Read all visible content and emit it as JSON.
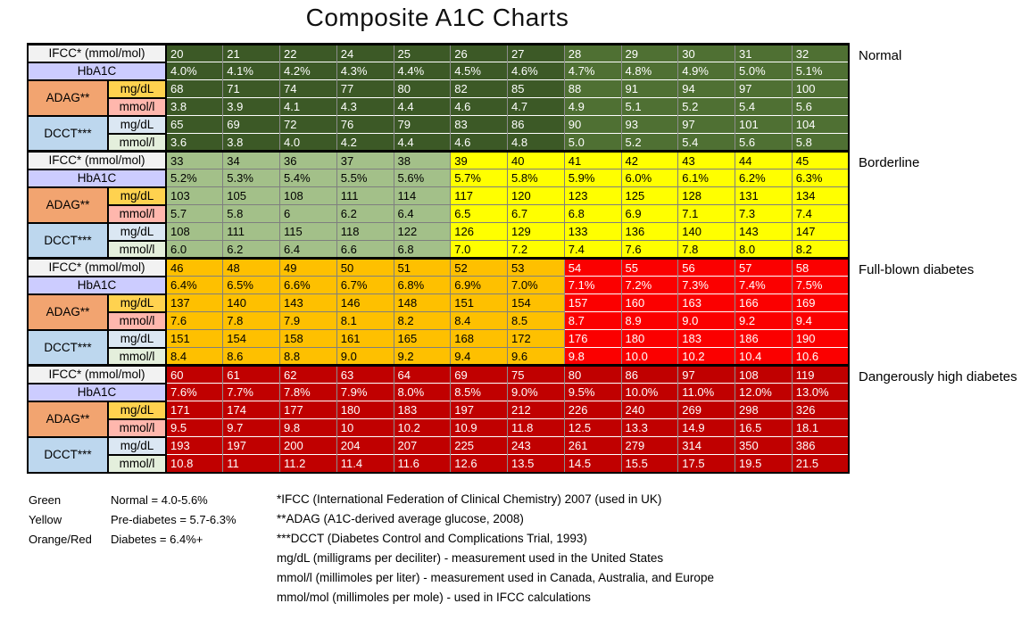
{
  "title": "Composite A1C Charts",
  "colors": {
    "darkgreen": "#3c5926",
    "medgreen": "#4f7033",
    "lightgreen": "#a3c089",
    "yellow": "#ffff00",
    "orange": "#fec000",
    "red": "#fb0000",
    "darkred": "#c00000",
    "header_ifcc": "#f2f2f2",
    "header_hba1c": "#ccccff",
    "header_adag": "#f2a470",
    "header_adag_mgdl": "#ffd24f",
    "header_adag_mmoll": "#ffb7ad",
    "header_dcct": "#bdd7ee",
    "header_dcct_mgdl": "#dbe7f3",
    "header_dcct_mmoll": "#e4efdc"
  },
  "chart_data": {
    "type": "table",
    "title": "Composite A1C Charts",
    "row_headers": {
      "ifcc": "IFCC* (mmol/mol)",
      "hba1c": "HbA1C",
      "adag": "ADAG**",
      "dcct": "DCCT***",
      "mgdl": "mg/dL",
      "mmoll": "mmol/l"
    },
    "sections": [
      {
        "label": "Normal",
        "left_color": "darkgreen",
        "right_color": "medgreen",
        "split": 7,
        "rows": {
          "ifcc": [
            "20",
            "21",
            "22",
            "24",
            "25",
            "26",
            "27",
            "28",
            "29",
            "30",
            "31",
            "32"
          ],
          "hba1c": [
            "4.0%",
            "4.1%",
            "4.2%",
            "4.3%",
            "4.4%",
            "4.5%",
            "4.6%",
            "4.7%",
            "4.8%",
            "4.9%",
            "5.0%",
            "5.1%"
          ],
          "adag_mgdl": [
            "68",
            "71",
            "74",
            "77",
            "80",
            "82",
            "85",
            "88",
            "91",
            "94",
            "97",
            "100"
          ],
          "adag_mmoll": [
            "3.8",
            "3.9",
            "4.1",
            "4.3",
            "4.4",
            "4.6",
            "4.7",
            "4.9",
            "5.1",
            "5.2",
            "5.4",
            "5.6"
          ],
          "dcct_mgdl": [
            "65",
            "69",
            "72",
            "76",
            "79",
            "83",
            "86",
            "90",
            "93",
            "97",
            "101",
            "104"
          ],
          "dcct_mmoll": [
            "3.6",
            "3.8",
            "4.0",
            "4.2",
            "4.4",
            "4.6",
            "4.8",
            "5.0",
            "5.2",
            "5.4",
            "5.6",
            "5.8"
          ]
        }
      },
      {
        "label": "Borderline",
        "left_color": "lightgreen",
        "right_color": "yellow",
        "split": 5,
        "rows": {
          "ifcc": [
            "33",
            "34",
            "36",
            "37",
            "38",
            "39",
            "40",
            "41",
            "42",
            "43",
            "44",
            "45"
          ],
          "hba1c": [
            "5.2%",
            "5.3%",
            "5.4%",
            "5.5%",
            "5.6%",
            "5.7%",
            "5.8%",
            "5.9%",
            "6.0%",
            "6.1%",
            "6.2%",
            "6.3%"
          ],
          "adag_mgdl": [
            "103",
            "105",
            "108",
            "111",
            "114",
            "117",
            "120",
            "123",
            "125",
            "128",
            "131",
            "134"
          ],
          "adag_mmoll": [
            "5.7",
            "5.8",
            "6",
            "6.2",
            "6.4",
            "6.5",
            "6.7",
            "6.8",
            "6.9",
            "7.1",
            "7.3",
            "7.4"
          ],
          "dcct_mgdl": [
            "108",
            "111",
            "115",
            "118",
            "122",
            "126",
            "129",
            "133",
            "136",
            "140",
            "143",
            "147"
          ],
          "dcct_mmoll": [
            "6.0",
            "6.2",
            "6.4",
            "6.6",
            "6.8",
            "7.0",
            "7.2",
            "7.4",
            "7.6",
            "7.8",
            "8.0",
            "8.2"
          ]
        }
      },
      {
        "label": "Full-blown diabetes",
        "left_color": "orange",
        "right_color": "red",
        "split": 7,
        "rows": {
          "ifcc": [
            "46",
            "48",
            "49",
            "50",
            "51",
            "52",
            "53",
            "54",
            "55",
            "56",
            "57",
            "58"
          ],
          "hba1c": [
            "6.4%",
            "6.5%",
            "6.6%",
            "6.7%",
            "6.8%",
            "6.9%",
            "7.0%",
            "7.1%",
            "7.2%",
            "7.3%",
            "7.4%",
            "7.5%"
          ],
          "adag_mgdl": [
            "137",
            "140",
            "143",
            "146",
            "148",
            "151",
            "154",
            "157",
            "160",
            "163",
            "166",
            "169"
          ],
          "adag_mmoll": [
            "7.6",
            "7.8",
            "7.9",
            "8.1",
            "8.2",
            "8.4",
            "8.5",
            "8.7",
            "8.9",
            "9.0",
            "9.2",
            "9.4"
          ],
          "dcct_mgdl": [
            "151",
            "154",
            "158",
            "161",
            "165",
            "168",
            "172",
            "176",
            "180",
            "183",
            "186",
            "190"
          ],
          "dcct_mmoll": [
            "8.4",
            "8.6",
            "8.8",
            "9.0",
            "9.2",
            "9.4",
            "9.6",
            "9.8",
            "10.0",
            "10.2",
            "10.4",
            "10.6"
          ]
        }
      },
      {
        "label": "Dangerously high diabetes",
        "left_color": "darkred",
        "right_color": "darkred",
        "split": 12,
        "rows": {
          "ifcc": [
            "60",
            "61",
            "62",
            "63",
            "64",
            "69",
            "75",
            "80",
            "86",
            "97",
            "108",
            "119"
          ],
          "hba1c": [
            "7.6%",
            "7.7%",
            "7.8%",
            "7.9%",
            "8.0%",
            "8.5%",
            "9.0%",
            "9.5%",
            "10.0%",
            "11.0%",
            "12.0%",
            "13.0%"
          ],
          "adag_mgdl": [
            "171",
            "174",
            "177",
            "180",
            "183",
            "197",
            "212",
            "226",
            "240",
            "269",
            "298",
            "326"
          ],
          "adag_mmoll": [
            "9.5",
            "9.7",
            "9.8",
            "10",
            "10.2",
            "10.9",
            "11.8",
            "12.5",
            "13.3",
            "14.9",
            "16.5",
            "18.1"
          ],
          "dcct_mgdl": [
            "193",
            "197",
            "200",
            "204",
            "207",
            "225",
            "243",
            "261",
            "279",
            "314",
            "350",
            "386"
          ],
          "dcct_mmoll": [
            "10.8",
            "11",
            "11.2",
            "11.4",
            "11.6",
            "12.6",
            "13.5",
            "14.5",
            "15.5",
            "17.5",
            "19.5",
            "21.5"
          ]
        }
      }
    ],
    "legend": [
      {
        "color_name": "Green",
        "meaning": "Normal = 4.0-5.6%"
      },
      {
        "color_name": "Yellow",
        "meaning": "Pre-diabetes = 5.7-6.3%"
      },
      {
        "color_name": "Orange/Red",
        "meaning": "Diabetes = 6.4%+"
      }
    ],
    "footnotes": [
      "*IFCC (International Federation of Clinical Chemistry) 2007 (used in UK)",
      "**ADAG (A1C-derived average glucose, 2008)",
      "***DCCT (Diabetes Control and Complications Trial, 1993)",
      "mg/dL (milligrams per deciliter) - measurement used in the United States",
      "mmol/l (millimoles per liter) - measurement used in Canada, Australia, and Europe",
      "mmol/mol (millimoles per mole) - used in IFCC calculations"
    ]
  }
}
